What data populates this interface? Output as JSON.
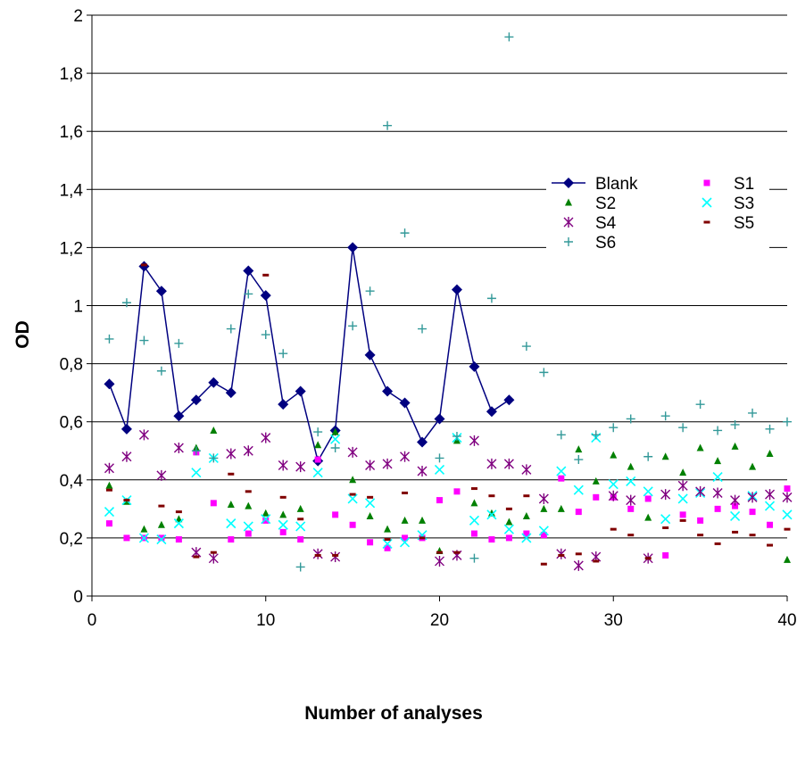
{
  "chart_data": {
    "type": "scatter",
    "xlabel": "Number of analyses",
    "ylabel": "OD",
    "xlim": [
      0,
      40
    ],
    "ylim": [
      0,
      2
    ],
    "xticks": [
      "0",
      "10",
      "20",
      "30",
      "40"
    ],
    "yticks": [
      "0",
      "0,2",
      "0,4",
      "0,6",
      "0,8",
      "1",
      "1,2",
      "1,4",
      "1,6",
      "1,8",
      "2"
    ],
    "grid": "horizontal",
    "legend_position": "top-right",
    "series": [
      {
        "name": "Blank",
        "marker": "diamond-line",
        "color": "#000080",
        "x": [
          1,
          2,
          3,
          4,
          5,
          6,
          7,
          8,
          9,
          10,
          11,
          12,
          13,
          14,
          15,
          16,
          17,
          18,
          19,
          20,
          21,
          22,
          23,
          24
        ],
        "y": [
          0.73,
          0.575,
          1.135,
          1.05,
          0.62,
          0.675,
          0.735,
          0.7,
          1.12,
          1.035,
          0.66,
          0.705,
          0.465,
          0.57,
          1.2,
          0.83,
          0.705,
          0.665,
          0.53,
          0.61,
          1.055,
          0.79,
          0.635,
          0.675
        ]
      },
      {
        "name": "S1",
        "marker": "square",
        "color": "#ff00ff",
        "x": [
          1,
          2,
          3,
          4,
          5,
          6,
          7,
          8,
          9,
          10,
          11,
          12,
          13,
          14,
          15,
          16,
          17,
          18,
          19,
          20,
          21,
          22,
          23,
          24,
          25,
          26,
          27,
          28,
          29,
          30,
          31,
          32,
          33,
          34,
          35,
          36,
          37,
          38,
          39,
          40
        ],
        "y": [
          0.25,
          0.2,
          0.2,
          0.2,
          0.195,
          0.495,
          0.32,
          0.195,
          0.215,
          0.26,
          0.22,
          0.195,
          0.47,
          0.28,
          0.245,
          0.185,
          0.165,
          0.2,
          0.2,
          0.33,
          0.36,
          0.215,
          0.195,
          0.2,
          0.215,
          0.21,
          0.405,
          0.29,
          0.34,
          0.34,
          0.3,
          0.335,
          0.14,
          0.28,
          0.26,
          0.3,
          0.31,
          0.29,
          0.245,
          0.37
        ]
      },
      {
        "name": "S2",
        "marker": "triangle",
        "color": "#008000",
        "x": [
          1,
          2,
          3,
          4,
          5,
          6,
          7,
          8,
          9,
          10,
          11,
          12,
          13,
          14,
          15,
          16,
          17,
          18,
          19,
          20,
          21,
          22,
          23,
          24,
          25,
          26,
          27,
          28,
          29,
          30,
          31,
          32,
          33,
          34,
          35,
          36,
          37,
          38,
          39,
          40
        ],
        "y": [
          0.38,
          0.325,
          0.23,
          0.245,
          0.265,
          0.51,
          0.57,
          0.315,
          0.31,
          0.285,
          0.28,
          0.3,
          0.52,
          0.565,
          0.4,
          0.275,
          0.23,
          0.26,
          0.26,
          0.155,
          0.535,
          0.32,
          0.285,
          0.255,
          0.275,
          0.3,
          0.3,
          0.505,
          0.395,
          0.485,
          0.445,
          0.27,
          0.48,
          0.425,
          0.51,
          0.465,
          0.515,
          0.445,
          0.49,
          0.125
        ]
      },
      {
        "name": "S3",
        "marker": "x",
        "color": "#00ffff",
        "x": [
          1,
          2,
          3,
          4,
          5,
          6,
          7,
          8,
          9,
          10,
          11,
          12,
          13,
          14,
          15,
          16,
          17,
          18,
          19,
          20,
          21,
          22,
          23,
          24,
          25,
          26,
          27,
          28,
          29,
          30,
          31,
          32,
          33,
          34,
          35,
          36,
          37,
          38,
          39,
          40
        ],
        "y": [
          0.29,
          0.33,
          0.2,
          0.195,
          0.25,
          0.425,
          0.475,
          0.25,
          0.24,
          0.265,
          0.245,
          0.24,
          0.425,
          0.54,
          0.335,
          0.32,
          0.18,
          0.185,
          0.21,
          0.435,
          0.545,
          0.26,
          0.28,
          0.23,
          0.2,
          0.225,
          0.43,
          0.365,
          0.545,
          0.385,
          0.395,
          0.36,
          0.265,
          0.335,
          0.355,
          0.41,
          0.275,
          0.345,
          0.31,
          0.28
        ]
      },
      {
        "name": "S4",
        "marker": "star",
        "color": "#800080",
        "x": [
          1,
          2,
          3,
          4,
          5,
          6,
          7,
          8,
          9,
          10,
          11,
          12,
          13,
          14,
          15,
          16,
          17,
          18,
          19,
          20,
          21,
          22,
          23,
          24,
          25,
          26,
          27,
          28,
          29,
          30,
          31,
          32,
          33,
          34,
          35,
          36,
          37,
          38,
          39,
          40
        ],
        "y": [
          0.44,
          0.48,
          0.555,
          0.415,
          0.51,
          0.15,
          0.13,
          0.49,
          0.5,
          0.545,
          0.45,
          0.445,
          0.145,
          0.135,
          0.495,
          0.45,
          0.455,
          0.48,
          0.43,
          0.12,
          0.14,
          0.535,
          0.455,
          0.455,
          0.435,
          0.335,
          0.145,
          0.105,
          0.135,
          0.345,
          0.33,
          0.13,
          0.35,
          0.38,
          0.36,
          0.355,
          0.33,
          0.34,
          0.35,
          0.34
        ]
      },
      {
        "name": "S5",
        "marker": "dash",
        "color": "#800000",
        "x": [
          1,
          2,
          3,
          4,
          5,
          6,
          7,
          8,
          9,
          10,
          11,
          12,
          13,
          14,
          15,
          16,
          17,
          18,
          19,
          20,
          21,
          22,
          23,
          24,
          25,
          26,
          27,
          28,
          29,
          30,
          31,
          32,
          33,
          34,
          35,
          36,
          37,
          38,
          39,
          40
        ],
        "y": [
          0.365,
          0.33,
          1.14,
          0.31,
          0.29,
          0.135,
          0.15,
          0.42,
          0.36,
          1.105,
          0.34,
          0.265,
          0.14,
          0.14,
          0.35,
          0.34,
          0.195,
          0.355,
          0.2,
          0.15,
          0.15,
          0.37,
          0.345,
          0.3,
          0.345,
          0.11,
          0.14,
          0.145,
          0.12,
          0.23,
          0.21,
          0.13,
          0.235,
          0.26,
          0.21,
          0.18,
          0.22,
          0.21,
          0.175,
          0.23
        ]
      },
      {
        "name": "S6",
        "marker": "plus",
        "color": "#339999",
        "x": [
          1,
          2,
          3,
          4,
          5,
          6,
          7,
          8,
          9,
          10,
          11,
          12,
          13,
          14,
          15,
          16,
          17,
          18,
          19,
          20,
          21,
          22,
          23,
          24,
          25,
          26,
          27,
          28,
          29,
          30,
          31,
          32,
          33,
          34,
          35,
          36,
          37,
          38,
          39,
          40
        ],
        "y": [
          0.885,
          1.01,
          0.88,
          0.775,
          0.87,
          0.5,
          0.475,
          0.92,
          1.04,
          0.9,
          0.835,
          0.1,
          0.565,
          0.51,
          0.93,
          1.05,
          1.62,
          1.25,
          0.92,
          0.475,
          0.55,
          0.13,
          1.025,
          1.925,
          0.86,
          0.77,
          0.555,
          0.47,
          0.555,
          0.58,
          0.61,
          0.48,
          0.62,
          0.58,
          0.66,
          0.57,
          0.59,
          0.63,
          0.575,
          0.6
        ]
      }
    ]
  }
}
